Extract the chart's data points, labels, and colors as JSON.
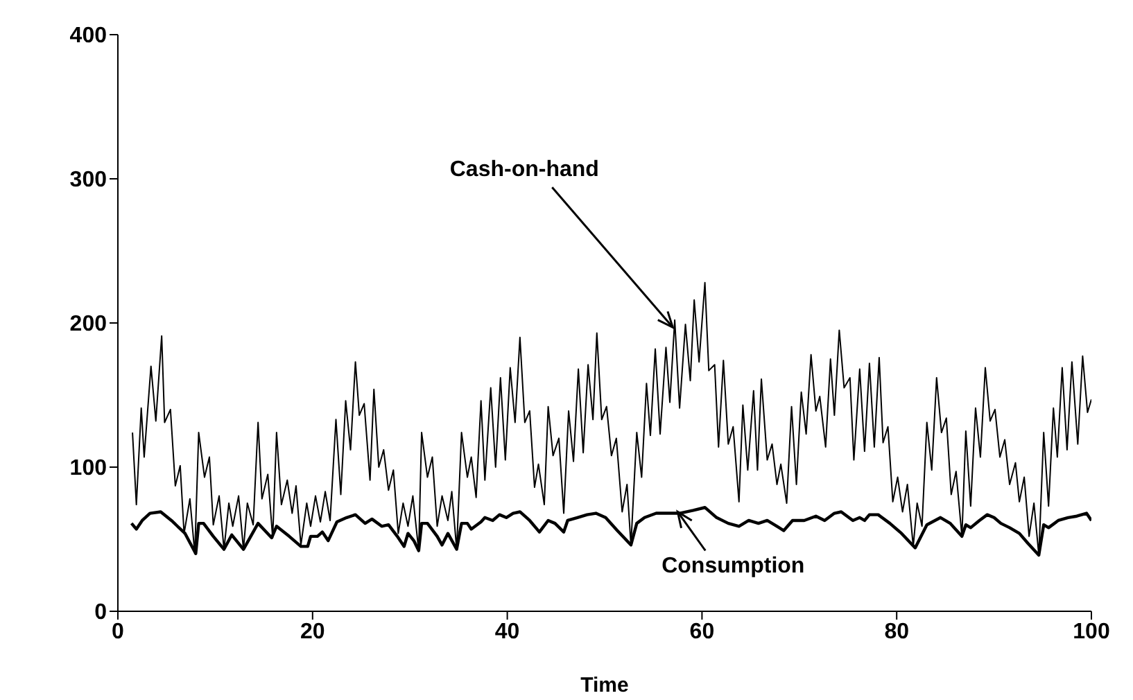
{
  "chart_data": {
    "type": "line",
    "xlabel": "Time",
    "xlim": [
      0,
      100
    ],
    "xticks": [
      0,
      20,
      40,
      60,
      80,
      100
    ],
    "ylim": [
      0,
      400
    ],
    "yticks": [
      0,
      100,
      200,
      300,
      400
    ],
    "grid": false,
    "legend": false,
    "marker": "none",
    "line_style": "solid",
    "annotations": [
      {
        "text": "Cash-on-hand",
        "x": 57,
        "y": 197
      },
      {
        "text": "Consumption",
        "x": 57.5,
        "y": 69
      }
    ],
    "series": [
      {
        "color": "#000000",
        "x": [
          1.5,
          1.9,
          2.4,
          2.7,
          3.4,
          3.9,
          4.5,
          4.8,
          5.4,
          5.9,
          6.4,
          6.8,
          7.4,
          7.9,
          8.3,
          8.9,
          9.4,
          9.8,
          10.4,
          10.9,
          11.4,
          11.8,
          12.4,
          12.9,
          13.3,
          13.9,
          14.4,
          14.8,
          15.4,
          15.9,
          16.3,
          16.8,
          17.4,
          17.9,
          18.3,
          18.8,
          19.4,
          19.8,
          20.3,
          20.8,
          21.3,
          21.8,
          22.4,
          22.9,
          23.4,
          23.9,
          24.4,
          24.8,
          25.3,
          25.9,
          26.3,
          26.8,
          27.3,
          27.8,
          28.3,
          28.8,
          29.3,
          29.8,
          30.3,
          30.9,
          31.2,
          31.8,
          32.3,
          32.8,
          33.3,
          33.9,
          34.3,
          34.8,
          35.3,
          35.9,
          36.3,
          36.8,
          37.3,
          37.7,
          38.3,
          38.8,
          39.3,
          39.8,
          40.3,
          40.8,
          41.3,
          41.8,
          42.3,
          42.8,
          43.2,
          43.8,
          44.2,
          44.7,
          45.3,
          45.8,
          46.3,
          46.8,
          47.3,
          47.8,
          48.3,
          48.8,
          49.2,
          49.7,
          50.2,
          50.7,
          51.2,
          51.8,
          52.3,
          52.7,
          53.3,
          53.8,
          54.3,
          54.7,
          55.2,
          55.7,
          56.3,
          56.7,
          57.2,
          57.7,
          58.3,
          58.8,
          59.2,
          59.7,
          60.3,
          60.7,
          61.3,
          61.7,
          62.2,
          62.7,
          63.2,
          63.8,
          64.2,
          64.7,
          65.3,
          65.7,
          66.1,
          66.7,
          67.2,
          67.7,
          68.1,
          68.7,
          69.2,
          69.7,
          70.2,
          70.7,
          71.2,
          71.7,
          72.1,
          72.7,
          73.2,
          73.6,
          74.1,
          74.6,
          75.2,
          75.6,
          76.2,
          76.7,
          77.2,
          77.7,
          78.2,
          78.6,
          79.1,
          79.6,
          80.1,
          80.6,
          81.1,
          81.7,
          82.1,
          82.6,
          83.1,
          83.6,
          84.1,
          84.6,
          85.1,
          85.6,
          86.1,
          86.7,
          87.1,
          87.6,
          88.1,
          88.6,
          89.1,
          89.6,
          90.1,
          90.6,
          91.1,
          91.6,
          92.2,
          92.6,
          93.1,
          93.6,
          94.1,
          94.6,
          95.1,
          95.6,
          96.1,
          96.5,
          97.0,
          97.5,
          98.0,
          98.6,
          99.1,
          99.6,
          100
        ],
        "values": [
          124,
          74,
          141,
          107,
          170,
          132,
          191,
          131,
          140,
          87,
          101,
          54,
          78,
          40,
          124,
          93,
          107,
          60,
          80,
          43,
          75,
          59,
          80,
          43,
          75,
          60,
          131,
          78,
          95,
          51,
          124,
          74,
          91,
          68,
          87,
          46,
          75,
          59,
          80,
          62,
          83,
          63,
          133,
          81,
          146,
          112,
          173,
          136,
          144,
          91,
          154,
          100,
          112,
          84,
          98,
          54,
          75,
          59,
          80,
          42,
          124,
          93,
          107,
          59,
          80,
          63,
          83,
          43,
          124,
          93,
          107,
          79,
          146,
          91,
          155,
          100,
          162,
          105,
          169,
          131,
          190,
          131,
          139,
          86,
          102,
          74,
          142,
          108,
          120,
          68,
          139,
          104,
          168,
          110,
          171,
          133,
          193,
          133,
          142,
          108,
          120,
          69,
          88,
          46,
          124,
          93,
          158,
          122,
          182,
          123,
          183,
          145,
          202,
          141,
          199,
          160,
          216,
          173,
          228,
          167,
          171,
          114,
          174,
          116,
          128,
          76,
          143,
          98,
          153,
          98,
          161,
          105,
          116,
          88,
          102,
          75,
          142,
          88,
          152,
          123,
          178,
          139,
          149,
          114,
          175,
          136,
          195,
          155,
          162,
          105,
          168,
          111,
          172,
          114,
          176,
          117,
          128,
          76,
          93,
          69,
          88,
          45,
          75,
          59,
          131,
          98,
          162,
          124,
          134,
          81,
          97,
          52,
          125,
          73,
          141,
          107,
          169,
          132,
          140,
          107,
          119,
          88,
          103,
          76,
          93,
          52,
          75,
          39,
          124,
          73,
          141,
          107,
          169,
          112,
          173,
          116,
          177,
          138,
          147
        ]
      },
      {
        "color": "#000000",
        "x": [
          1.4,
          1.9,
          2.5,
          3.3,
          4.4,
          5.5,
          6.9,
          8.0,
          8.3,
          8.8,
          9.8,
          10.9,
          11.7,
          12.9,
          14.4,
          15.8,
          16.3,
          17.6,
          18.8,
          19.5,
          19.8,
          20.5,
          21.0,
          21.6,
          22.5,
          23.5,
          24.4,
          25.4,
          26.1,
          27.1,
          27.8,
          28.7,
          29.4,
          29.8,
          30.4,
          30.9,
          31.2,
          31.8,
          32.8,
          33.3,
          33.9,
          34.8,
          35.3,
          35.9,
          36.3,
          37.3,
          37.7,
          38.5,
          39.2,
          39.9,
          40.6,
          41.3,
          42.3,
          43.3,
          44.2,
          44.9,
          45.8,
          46.2,
          47.2,
          48.2,
          49.1,
          50.1,
          51.3,
          52.7,
          53.3,
          54.1,
          55.3,
          56.7,
          57.7,
          59.1,
          60.3,
          61.5,
          62.7,
          63.8,
          64.8,
          65.8,
          66.7,
          67.7,
          68.4,
          69.3,
          70.5,
          71.7,
          72.6,
          73.6,
          74.3,
          75.5,
          76.2,
          76.7,
          77.2,
          78.1,
          79.3,
          80.5,
          81.9,
          83.1,
          84.5,
          85.5,
          86.7,
          87.1,
          87.6,
          88.5,
          89.3,
          90.0,
          90.7,
          91.6,
          92.6,
          93.5,
          94.6,
          95.1,
          95.6,
          96.6,
          97.6,
          98.5,
          99.5,
          100
        ],
        "values": [
          61,
          57,
          63,
          68,
          69,
          63,
          54,
          40,
          61,
          61,
          52,
          43,
          53,
          43,
          61,
          51,
          59,
          52,
          45,
          45,
          52,
          52,
          55,
          49,
          62,
          65,
          67,
          61,
          64,
          59,
          60,
          52,
          45,
          54,
          49,
          42,
          61,
          61,
          52,
          46,
          54,
          43,
          61,
          61,
          57,
          62,
          65,
          63,
          67,
          65,
          68,
          69,
          63,
          55,
          63,
          61,
          55,
          63,
          65,
          67,
          68,
          65,
          56,
          46,
          61,
          65,
          68,
          68,
          68,
          70,
          72,
          65,
          61,
          59,
          63,
          61,
          63,
          59,
          56,
          63,
          63,
          66,
          63,
          68,
          69,
          63,
          65,
          63,
          67,
          67,
          61,
          54,
          44,
          60,
          65,
          61,
          52,
          60,
          58,
          63,
          67,
          65,
          61,
          58,
          54,
          47,
          39,
          60,
          58,
          63,
          65,
          66,
          68,
          63
        ]
      }
    ]
  }
}
